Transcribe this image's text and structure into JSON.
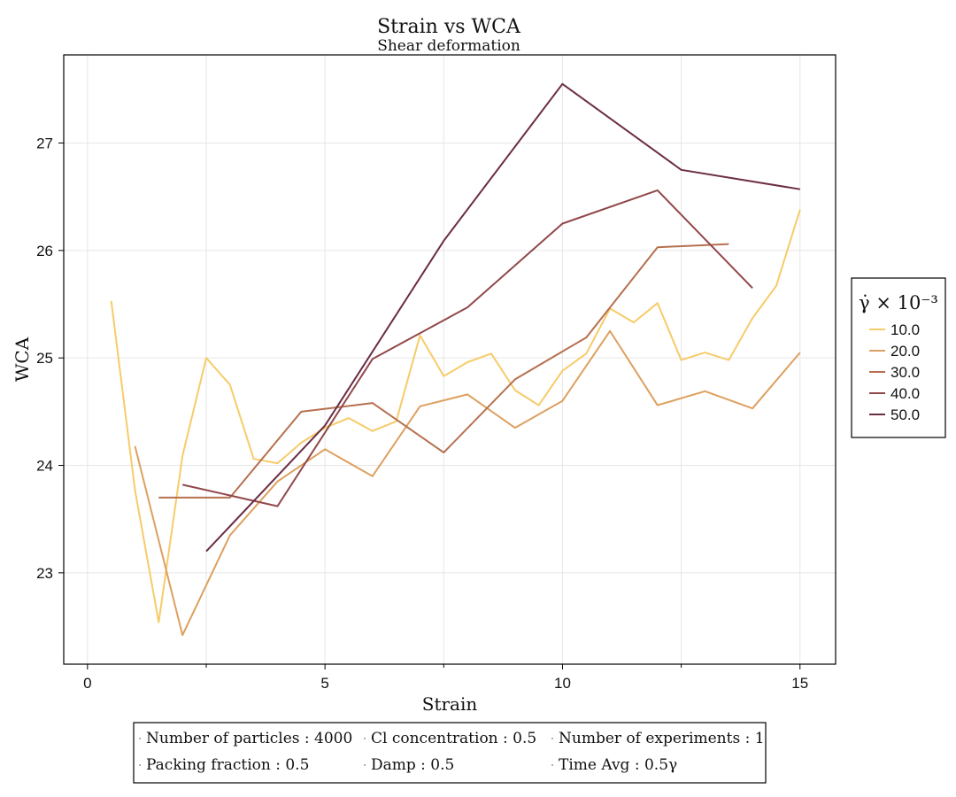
{
  "chart_data": {
    "type": "line",
    "title": "Strain vs WCA",
    "subtitle": "Shear deformation",
    "xlabel": "Strain",
    "ylabel": "WCA",
    "xlim": [
      -0.5,
      15.75
    ],
    "ylim": [
      22.15,
      27.82
    ],
    "x_ticks": [
      0,
      5,
      10,
      15
    ],
    "x_minor_ticks": [
      2.5,
      7.5,
      12.5
    ],
    "y_ticks": [
      23,
      24,
      25,
      26,
      27
    ],
    "grid": true,
    "legend": {
      "title": "γ̇ × 10⁻³",
      "placement": "right"
    },
    "series": [
      {
        "name": "10.0",
        "color": "#F7CB69",
        "x": [
          0.5,
          1,
          1.5,
          2,
          2.5,
          3,
          3.5,
          4,
          4.5,
          5,
          5.5,
          6,
          6.5,
          7,
          7.5,
          8,
          8.5,
          9,
          9.5,
          10,
          10.5,
          11,
          11.5,
          12,
          12.5,
          13,
          13.5,
          14,
          14.5,
          15
        ],
        "y": [
          25.53,
          23.77,
          22.54,
          24.09,
          25.0,
          24.75,
          24.06,
          24.02,
          24.21,
          24.35,
          24.44,
          24.32,
          24.41,
          25.21,
          24.83,
          24.96,
          25.04,
          24.7,
          24.56,
          24.88,
          25.04,
          25.46,
          25.33,
          25.51,
          24.98,
          25.05,
          24.98,
          25.37,
          25.67,
          26.38
        ]
      },
      {
        "name": "20.0",
        "color": "#DDA060",
        "x": [
          1,
          2,
          3,
          4,
          5,
          6,
          7,
          8,
          9,
          10,
          11,
          12,
          13,
          14,
          15
        ],
        "y": [
          24.18,
          22.42,
          23.35,
          23.85,
          24.15,
          23.9,
          24.55,
          24.66,
          24.35,
          24.6,
          25.25,
          24.56,
          24.69,
          24.53,
          25.05
        ]
      },
      {
        "name": "30.0",
        "color": "#B6704F",
        "x": [
          1.5,
          3,
          4.5,
          6,
          7.5,
          9,
          10.5,
          12,
          13.5
        ],
        "y": [
          23.7,
          23.7,
          24.5,
          24.58,
          24.12,
          24.8,
          25.19,
          26.03,
          26.06
        ]
      },
      {
        "name": "40.0",
        "color": "#91484A",
        "x": [
          2,
          4,
          6,
          8,
          10,
          12,
          14
        ],
        "y": [
          23.82,
          23.62,
          24.99,
          25.47,
          26.25,
          26.56,
          25.65
        ]
      },
      {
        "name": "50.0",
        "color": "#6B2D44",
        "x": [
          2.5,
          5,
          7.5,
          10,
          12.5,
          15
        ],
        "y": [
          23.2,
          24.37,
          26.09,
          27.55,
          26.75,
          26.57
        ]
      }
    ],
    "footer_legend": [
      [
        "Number of particles : 4000",
        "Cl concentration : 0.5",
        "Number of experiments : 1"
      ],
      [
        "Packing fraction : 0.5",
        "Damp : 0.5",
        "Time Avg : 0.5γ"
      ]
    ]
  }
}
